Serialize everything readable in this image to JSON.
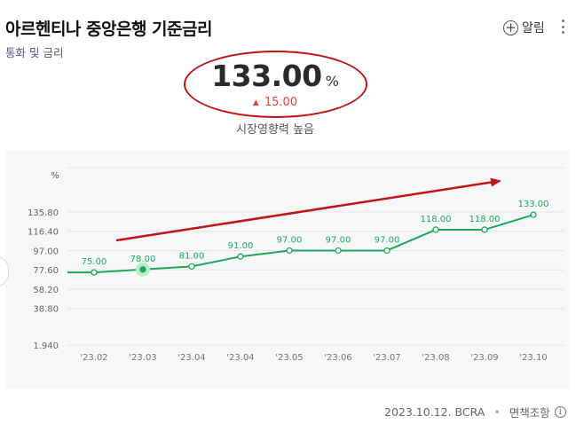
{
  "header": {
    "title": "아르헨티나 중앙은행 기준금리",
    "subtitle": "통화 및 금리",
    "alarm_label": "알림"
  },
  "summary": {
    "value": "133.00",
    "unit": "%",
    "change": "15.00",
    "change_color": "#e04646",
    "impact_text": "시장영향력 높음"
  },
  "footer": {
    "date_source": "2023.10.12. BCRA",
    "disclaimer": "면책조항"
  },
  "colors": {
    "line": "#1ea85b",
    "annotation": "#c01418"
  },
  "chart_data": {
    "type": "line",
    "ylabel": "%",
    "y_ticks": [
      "1.940",
      "38.80",
      "58.20",
      "77.60",
      "97.00",
      "116.40",
      "135.80"
    ],
    "ylim": [
      1.94,
      135.8
    ],
    "categories": [
      "'23.02",
      "'23.03",
      "'23.04",
      "'23.04",
      "'23.05",
      "'23.06",
      "'23.07",
      "'23.08",
      "'23.09",
      "'23.10"
    ],
    "values": [
      75.0,
      78.0,
      81.0,
      91.0,
      97.0,
      97.0,
      97.0,
      118.0,
      118.0,
      133.0
    ],
    "labels": [
      "75.00",
      "78.00",
      "81.00",
      "91.00",
      "97.00",
      "97.00",
      "97.00",
      "118.00",
      "118.00",
      "133.00"
    ],
    "highlight_index": 1,
    "grid": true
  }
}
